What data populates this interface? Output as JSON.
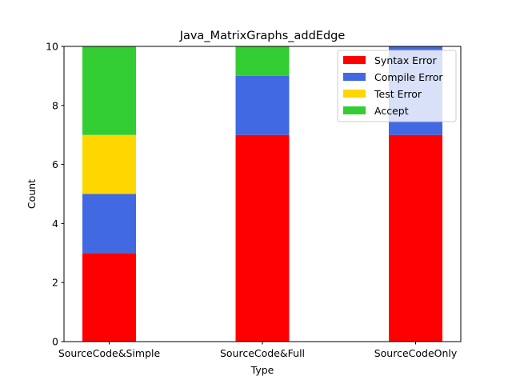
{
  "chart_data": {
    "type": "bar",
    "stacked": true,
    "title": "Java_MatrixGraphs_addEdge",
    "xlabel": "Type",
    "ylabel": "Count",
    "categories": [
      "SourceCode&Simple",
      "SourceCode&Full",
      "SourceCodeOnly"
    ],
    "ylim": [
      0,
      10
    ],
    "yticks": [
      0,
      2,
      4,
      6,
      8,
      10
    ],
    "legend_position": "top-right",
    "grid": false,
    "series": [
      {
        "name": "Syntax Error",
        "color": "#ff0000",
        "values": [
          3,
          7,
          7
        ]
      },
      {
        "name": "Compile Error",
        "color": "#4169e1",
        "values": [
          2,
          2,
          3
        ]
      },
      {
        "name": "Test Error",
        "color": "#ffd700",
        "values": [
          2,
          0,
          0
        ]
      },
      {
        "name": "Accept",
        "color": "#32cd32",
        "values": [
          3,
          1,
          0
        ]
      }
    ]
  }
}
